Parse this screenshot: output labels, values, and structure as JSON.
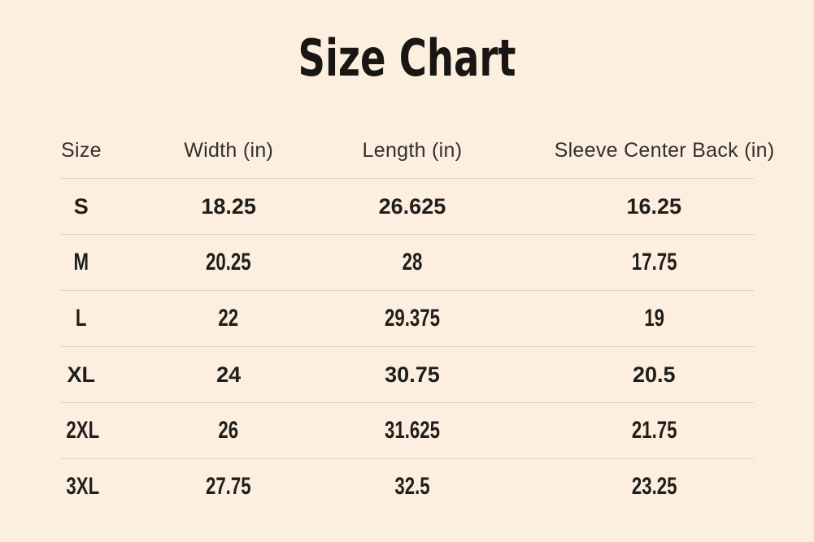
{
  "page": {
    "background_color": "#fcefdf",
    "divider_color": "#ddd3c6",
    "title_color": "#191613",
    "header_text_color": "#33302b",
    "data_text_color": "#201e1a"
  },
  "title": "Size Chart",
  "table": {
    "headers": [
      "Size",
      "Width (in)",
      "Length (in)",
      "Sleeve Center Back (in)"
    ],
    "rows": [
      {
        "size": "S",
        "width": "18.25",
        "length": "26.625",
        "sleeve": "16.25"
      },
      {
        "size": "M",
        "width": "20.25",
        "length": "28",
        "sleeve": "17.75"
      },
      {
        "size": "L",
        "width": "22",
        "length": "29.375",
        "sleeve": "19"
      },
      {
        "size": "XL",
        "width": "24",
        "length": "30.75",
        "sleeve": "20.5"
      },
      {
        "size": "2XL",
        "width": "26",
        "length": "31.625",
        "sleeve": "21.75"
      },
      {
        "size": "3XL",
        "width": "27.75",
        "length": "32.5",
        "sleeve": "23.25"
      }
    ]
  },
  "chart_data": {
    "type": "table",
    "title": "Size Chart",
    "columns": [
      "Size",
      "Width (in)",
      "Length (in)",
      "Sleeve Center Back (in)"
    ],
    "rows": [
      [
        "S",
        18.25,
        26.625,
        16.25
      ],
      [
        "M",
        20.25,
        28,
        17.75
      ],
      [
        "L",
        22,
        29.375,
        19
      ],
      [
        "XL",
        24,
        30.75,
        20.5
      ],
      [
        "2XL",
        26,
        31.625,
        21.75
      ],
      [
        "3XL",
        27.75,
        32.5,
        23.25
      ]
    ]
  }
}
